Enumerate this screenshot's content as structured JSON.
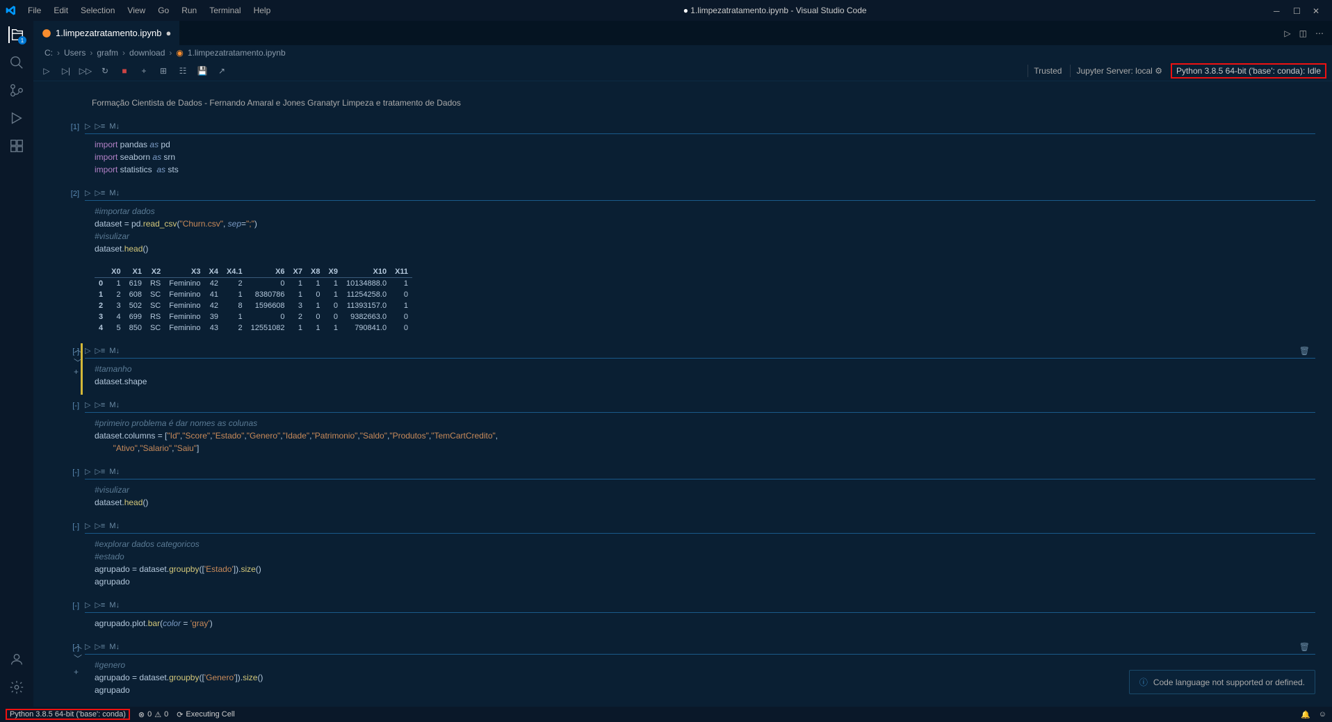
{
  "titlebar": {
    "menus": [
      "File",
      "Edit",
      "Selection",
      "View",
      "Go",
      "Run",
      "Terminal",
      "Help"
    ],
    "title_dirty": "●",
    "title": "1.limpezatratamento.ipynb - Visual Studio Code"
  },
  "tab": {
    "filename": "1.limpezatratamento.ipynb",
    "dirty": "●"
  },
  "breadcrumb": [
    "C:",
    "Users",
    "grafm",
    "download",
    "1.limpezatratamento.ipynb"
  ],
  "nbtoolbar_right": {
    "trusted": "Trusted",
    "server": "Jupyter Server: local",
    "kernel": "Python 3.8.5 64-bit ('base': conda): Idle"
  },
  "markdown1": "Formação Cientista de Dados - Fernando Amaral e Jones Granatyr Limpeza e tratamento de Dados",
  "cells": {
    "c1": {
      "prompt": "[1]"
    },
    "c2": {
      "prompt": "[2]"
    },
    "c3": {
      "prompt": "[-]"
    },
    "c4": {
      "prompt": "[-]"
    },
    "c5": {
      "prompt": "[-]"
    },
    "c6": {
      "prompt": "[-]"
    },
    "c7": {
      "prompt": "[-]"
    },
    "c8": {
      "prompt": "[-]"
    },
    "c9": {
      "prompt": "[-]"
    }
  },
  "cell_toolbar": {
    "mi": "M↓"
  },
  "table": {
    "headers": [
      "",
      "X0",
      "X1",
      "X2",
      "X3",
      "X4",
      "X4.1",
      "X6",
      "X7",
      "X8",
      "X9",
      "X10",
      "X11"
    ],
    "rows": [
      [
        "0",
        "1",
        "619",
        "RS",
        "Feminino",
        "42",
        "2",
        "0",
        "1",
        "1",
        "1",
        "10134888.0",
        "1"
      ],
      [
        "1",
        "2",
        "608",
        "SC",
        "Feminino",
        "41",
        "1",
        "8380786",
        "1",
        "0",
        "1",
        "11254258.0",
        "0"
      ],
      [
        "2",
        "3",
        "502",
        "SC",
        "Feminino",
        "42",
        "8",
        "1596608",
        "3",
        "1",
        "0",
        "11393157.0",
        "1"
      ],
      [
        "3",
        "4",
        "699",
        "RS",
        "Feminino",
        "39",
        "1",
        "0",
        "2",
        "0",
        "0",
        "9382663.0",
        "0"
      ],
      [
        "4",
        "5",
        "850",
        "SC",
        "Feminino",
        "43",
        "2",
        "12551082",
        "1",
        "1",
        "1",
        "790841.0",
        "0"
      ]
    ]
  },
  "notification": "Code language not supported or defined.",
  "statusbar": {
    "python": "Python 3.8.5 64-bit ('base': conda)",
    "problems": "0",
    "warnings": "0",
    "executing": "Executing Cell"
  }
}
